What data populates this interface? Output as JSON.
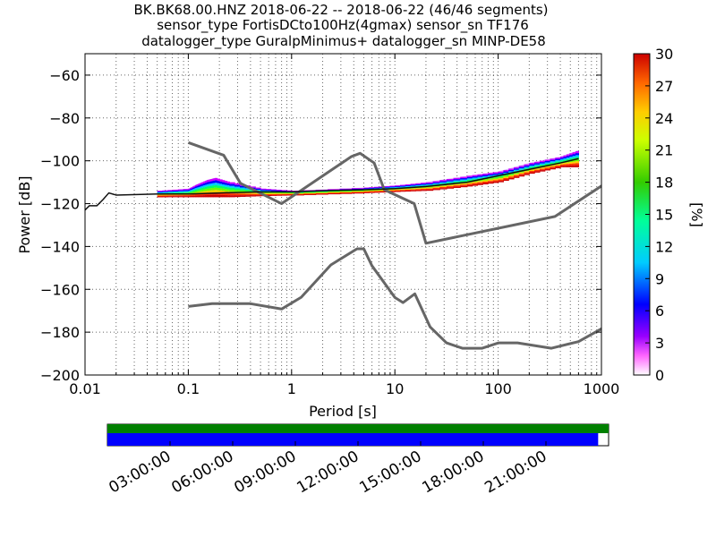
{
  "title_lines": [
    "BK.BK68.00.HNZ   2018-06-22 -- 2018-06-22  (46/46 segments)",
    "sensor_type FortisDCto100Hz(4gmax) sensor_sn TF176",
    "datalogger_type GuralpMinimus+ datalogger_sn MINP-DE58"
  ],
  "colors": {
    "noise_models": "#666666",
    "mode_line": "#111111",
    "grid": "#000000",
    "coverage_top": "#008000",
    "coverage_bottom": "#0000ff"
  },
  "chart_data": [
    {
      "type": "heatmap",
      "title": "BK.BK68.00.HNZ   2018-06-22 -- 2018-06-22  (46/46 segments)",
      "xlabel": "Period [s]",
      "ylabel": "Power [dB]",
      "x_scale": "log",
      "xlim": [
        0.01,
        1000
      ],
      "ylim": [
        -200,
        -50
      ],
      "x_ticks": [
        "0.01",
        "0.1",
        "1",
        "10",
        "100",
        "1000"
      ],
      "y_ticks": [
        "−60",
        "−80",
        "−100",
        "−120",
        "−140",
        "−160",
        "−180",
        "−200"
      ],
      "grid": "dotted, minor x gridlines",
      "colorbar": {
        "label": "[%]",
        "range": [
          0,
          30
        ],
        "ticks": [
          "30",
          "27",
          "24",
          "21",
          "18",
          "15",
          "12",
          "9",
          "6",
          "3",
          "0"
        ],
        "colormap": "pqlx (white-purple-blue-cyan-green-yellow-orange-red)"
      },
      "series": [
        {
          "name": "NHNM",
          "x": [
            0.1,
            0.22,
            0.32,
            0.8,
            3.8,
            4.6,
            6.3,
            7.9,
            15.4,
            20,
            354.8,
            10000
          ],
          "y": [
            -91.5,
            -97.4,
            -110.5,
            -120,
            -98,
            -96.5,
            -101,
            -113.5,
            -120,
            -138.5,
            -126,
            -80.1
          ]
        },
        {
          "name": "NLNM",
          "x": [
            0.1,
            0.17,
            0.4,
            0.8,
            1.24,
            2.4,
            4.3,
            5,
            6,
            10,
            12,
            15.6,
            21.9,
            31.6,
            45,
            70,
            101,
            154,
            328,
            600,
            10000
          ],
          "y": [
            -168,
            -166.7,
            -166.7,
            -169.2,
            -163.7,
            -148.6,
            -141.1,
            -141.1,
            -149,
            -163.8,
            -166.2,
            -162.1,
            -177.5,
            -185,
            -187.5,
            -187.5,
            -185,
            -185,
            -187.5,
            -184.4,
            -151.5
          ]
        },
        {
          "name": "mode",
          "x": [
            0.01,
            0.011,
            0.013,
            0.015,
            0.017,
            0.02,
            0.05,
            0.1,
            0.2,
            0.5,
            1,
            2,
            5,
            10,
            20,
            50,
            100,
            200,
            400,
            600
          ],
          "y": [
            -123,
            -121,
            -121,
            -118,
            -115,
            -116,
            -115.5,
            -115.5,
            -115,
            -114.5,
            -114.5,
            -114,
            -113.5,
            -113,
            -112,
            -110,
            -107,
            -104,
            -101,
            -99
          ]
        }
      ],
      "spread_bounds": {
        "x": [
          0.05,
          0.1,
          0.12,
          0.15,
          0.18,
          0.25,
          0.5,
          1,
          5,
          10,
          20,
          50,
          100,
          200,
          400,
          600
        ],
        "upper": [
          -114,
          -113,
          -111,
          -109,
          -108,
          -110,
          -113,
          -114,
          -112.5,
          -111.5,
          -110,
          -107,
          -105,
          -101,
          -98,
          -95
        ],
        "lower": [
          -117,
          -117,
          -117,
          -117,
          -117,
          -117,
          -116.5,
          -116,
          -115,
          -114.5,
          -114,
          -112,
          -110,
          -106,
          -103,
          -103
        ]
      }
    },
    {
      "type": "bar",
      "title": "",
      "xlabel": "",
      "time_ticks": [
        "03:00:00",
        "06:00:00",
        "09:00:00",
        "12:00:00",
        "15:00:00",
        "18:00:00",
        "21:00:00"
      ],
      "time_range_hours": [
        0,
        24
      ],
      "series": [
        {
          "name": "",
          "start_hour": 0,
          "end_hour": 24,
          "color": "#008000"
        },
        {
          "name": "",
          "start_hour": 0,
          "end_hour": 23.5,
          "color": "#0000ff"
        }
      ]
    }
  ]
}
